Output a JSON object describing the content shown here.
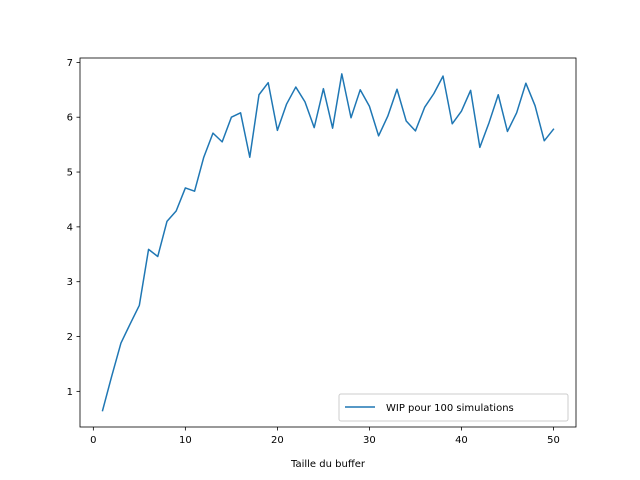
{
  "chart_data": {
    "type": "line",
    "title": "",
    "xlabel": "Taille du buffer",
    "ylabel": "",
    "xlim": [
      -1.45,
      52.45
    ],
    "ylim": [
      0.35,
      7.08
    ],
    "xticks": [
      0,
      10,
      20,
      30,
      40,
      50
    ],
    "yticks": [
      1,
      2,
      3,
      4,
      5,
      6,
      7
    ],
    "grid": false,
    "legend_position": "lower-right",
    "series": [
      {
        "name": "WIP pour 100 simulations",
        "color": "#1f77b4",
        "x": [
          1,
          2,
          3,
          4,
          5,
          6,
          7,
          8,
          9,
          10,
          11,
          12,
          13,
          14,
          15,
          16,
          17,
          18,
          19,
          20,
          21,
          22,
          23,
          24,
          25,
          26,
          27,
          28,
          29,
          30,
          31,
          32,
          33,
          34,
          35,
          36,
          37,
          38,
          39,
          40,
          41,
          42,
          43,
          44,
          45,
          46,
          47,
          48,
          49,
          50
        ],
        "y": [
          0.65,
          1.28,
          1.88,
          2.23,
          2.57,
          3.59,
          3.46,
          4.1,
          4.29,
          4.71,
          4.65,
          5.27,
          5.71,
          5.55,
          6.0,
          6.08,
          5.27,
          6.41,
          6.63,
          5.76,
          6.24,
          6.55,
          6.28,
          5.81,
          6.52,
          5.8,
          6.79,
          5.99,
          6.5,
          6.2,
          5.66,
          6.02,
          6.51,
          5.93,
          5.75,
          6.18,
          6.43,
          6.75,
          5.88,
          6.11,
          6.49,
          5.45,
          5.9,
          6.41,
          5.74,
          6.08,
          6.62,
          6.21,
          5.57,
          5.78
        ]
      }
    ]
  }
}
